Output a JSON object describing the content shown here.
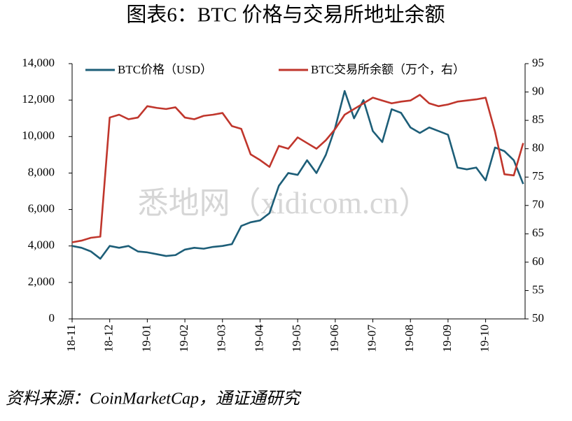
{
  "chart_data": {
    "type": "line",
    "title": "图表6：BTC 价格与交易所地址余额",
    "source": "资料来源：CoinMarketCap，通证通研究",
    "watermark": "悉地网（xidicom.cn）",
    "legend": "top",
    "x": [
      0,
      0.25,
      0.5,
      0.75,
      1,
      1.25,
      1.5,
      1.75,
      2,
      2.25,
      2.5,
      2.75,
      3,
      3.25,
      3.5,
      3.75,
      4,
      4.25,
      4.5,
      4.75,
      5,
      5.25,
      5.5,
      5.75,
      6,
      6.25,
      6.5,
      6.75,
      7,
      7.25,
      7.5,
      7.75,
      8,
      8.25,
      8.5,
      8.75,
      9,
      9.25,
      9.5,
      9.75,
      10,
      10.25,
      10.5,
      10.75,
      11,
      11.25,
      11.5,
      11.75,
      12
    ],
    "xlim": [
      0,
      12.05
    ],
    "xticks": [
      {
        "value": 0,
        "label": "18-11"
      },
      {
        "value": 1,
        "label": "18-12"
      },
      {
        "value": 2,
        "label": "19-01"
      },
      {
        "value": 3,
        "label": "19-02"
      },
      {
        "value": 4,
        "label": "19-03"
      },
      {
        "value": 5,
        "label": "19-04"
      },
      {
        "value": 6,
        "label": "19-05"
      },
      {
        "value": 7,
        "label": "19-06"
      },
      {
        "value": 8,
        "label": "19-07"
      },
      {
        "value": 9,
        "label": "19-08"
      },
      {
        "value": 10,
        "label": "19-09"
      },
      {
        "value": 11,
        "label": "19-10"
      }
    ],
    "ylim": [
      0,
      14000
    ],
    "yticks": [
      0,
      {
        "value": 2000,
        "label": "2,000"
      },
      {
        "value": 4000,
        "label": "4,000"
      },
      {
        "value": 6000,
        "label": "6,000"
      },
      {
        "value": 8000,
        "label": "8,000"
      },
      {
        "value": 10000,
        "label": "10,000"
      },
      {
        "value": 12000,
        "label": "12,000"
      },
      {
        "value": 14000,
        "label": "14,000"
      }
    ],
    "y2lim": [
      50,
      95
    ],
    "y2ticks": [
      50,
      55,
      60,
      65,
      70,
      75,
      80,
      85,
      90,
      95
    ],
    "series": [
      {
        "name": "BTC价格（USD）",
        "color": "#1d5e78",
        "values": [
          4000,
          3900,
          3700,
          3300,
          4000,
          3900,
          4000,
          3700,
          3650,
          3550,
          3450,
          3500,
          3800,
          3900,
          3850,
          3950,
          4000,
          4100,
          5100,
          5300,
          5400,
          5800,
          7300,
          8000,
          7900,
          8700,
          8000,
          9000,
          10500,
          12500,
          11000,
          12000,
          10300,
          9700,
          11500,
          11300,
          10500,
          10200,
          10500,
          10300,
          10100,
          8300,
          8200,
          8300,
          7600,
          9400,
          9200,
          8700,
          7400
        ]
      },
      {
        "name": "BTC交易所余额（万个，右）",
        "color": "#c0362c",
        "axis": "y2",
        "values": [
          63.5,
          63.8,
          64.3,
          64.5,
          85.5,
          86.0,
          85.2,
          85.5,
          87.5,
          87.2,
          87.0,
          87.3,
          85.5,
          85.2,
          85.8,
          86.0,
          86.3,
          84.0,
          83.5,
          79.0,
          78.0,
          76.8,
          80.5,
          80.0,
          82.0,
          81.0,
          80.0,
          81.5,
          83.5,
          86.0,
          87.0,
          88.0,
          89.0,
          88.5,
          88.0,
          88.3,
          88.5,
          89.5,
          88.0,
          87.5,
          87.8,
          88.3,
          88.5,
          88.7,
          89.0,
          83.0,
          75.5,
          75.3,
          81.0
        ]
      }
    ]
  }
}
